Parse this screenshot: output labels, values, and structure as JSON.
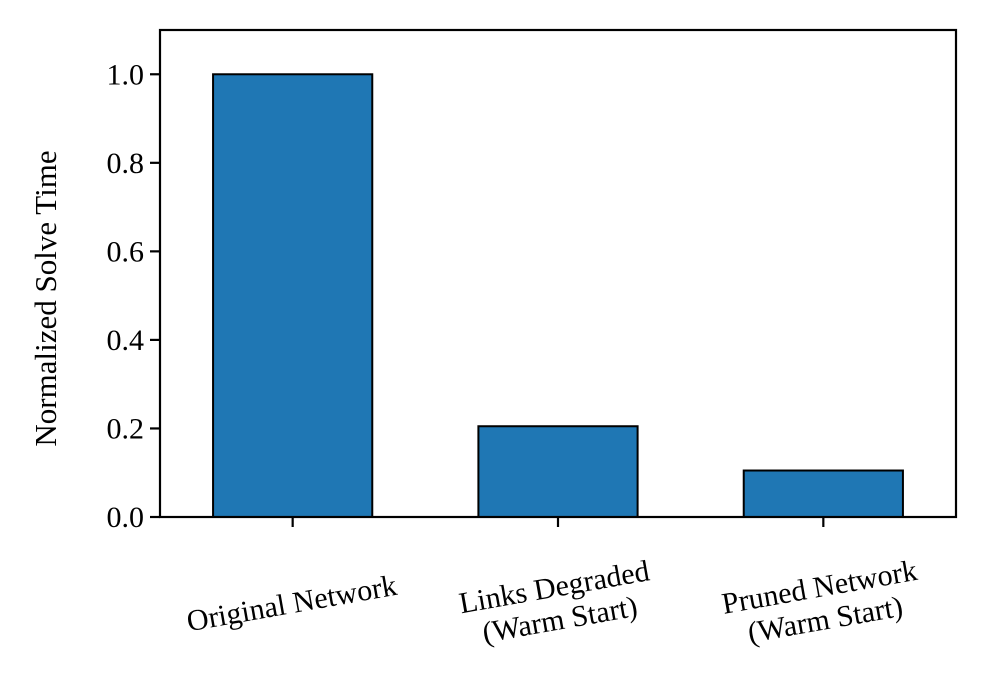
{
  "chart_data": {
    "type": "bar",
    "title": "",
    "xlabel": "",
    "ylabel": "Normalized Solve Time",
    "categories": [
      [
        "Original Network"
      ],
      [
        "Links Degraded",
        "(Warm Start)"
      ],
      [
        "Pruned Network",
        "(Warm Start)"
      ]
    ],
    "values": [
      1.0,
      0.205,
      0.105
    ],
    "ylim": [
      0,
      1.1
    ],
    "yticks": [
      0.0,
      0.2,
      0.4,
      0.6,
      0.8,
      1.0
    ],
    "ytick_labels": [
      "0.0",
      "0.2",
      "0.4",
      "0.6",
      "0.8",
      "1.0"
    ],
    "bar_color": "#1f77b4",
    "edge_color": "#000000",
    "grid": false,
    "legend": "none",
    "xtick_rotation_deg": -10
  }
}
